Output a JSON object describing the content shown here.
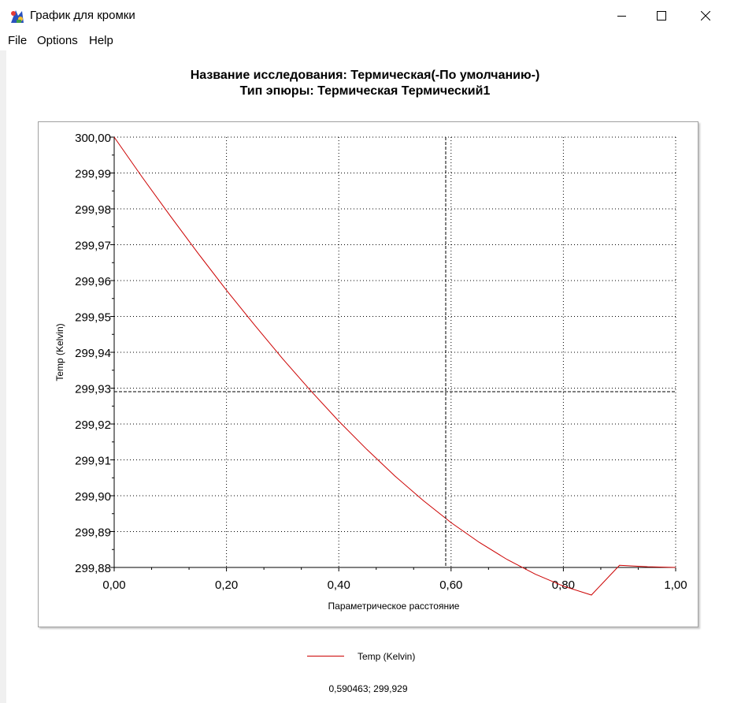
{
  "window": {
    "title": "График для кромки",
    "icon": "palette-chart-icon"
  },
  "menu": [
    {
      "label": "File"
    },
    {
      "label": "Options"
    },
    {
      "label": "Help"
    }
  ],
  "header": {
    "line1": "Название исследования: Термическая(-По умолчанию-)",
    "line2": "Тип эпюры: Термическая Термический1"
  },
  "chart_data": {
    "type": "line",
    "xlabel": "Параметрическое расстояние",
    "ylabel": "Temp (Kelvin)",
    "xlim": [
      0.0,
      1.0
    ],
    "ylim": [
      299.88,
      300.0
    ],
    "x_ticks": [
      "0,00",
      "0,20",
      "0,40",
      "0,60",
      "0,80",
      "1,00"
    ],
    "y_ticks": [
      "299,88",
      "299,89",
      "299,90",
      "299,91",
      "299,92",
      "299,93",
      "299,94",
      "299,95",
      "299,96",
      "299,97",
      "299,98",
      "299,99",
      "300,00"
    ],
    "grid": true,
    "legend": "bottom",
    "series": [
      {
        "name": "Temp (Kelvin)",
        "color": "#cc0000",
        "x": [
          0.0,
          0.05,
          0.1,
          0.15,
          0.2,
          0.25,
          0.3,
          0.35,
          0.4,
          0.45,
          0.5,
          0.55,
          0.6,
          0.65,
          0.7,
          0.75,
          0.8,
          0.85,
          0.9,
          0.95,
          1.0
        ],
        "y": [
          300.0,
          299.9888,
          299.978,
          299.9675,
          299.9573,
          299.9476,
          299.9382,
          299.9293,
          299.9208,
          299.9129,
          299.9055,
          299.8987,
          299.8925,
          299.887,
          299.8822,
          299.8781,
          299.8748,
          299.8723,
          299.8806,
          299.8802,
          299.88
        ]
      }
    ],
    "cursor": {
      "x": 0.590463,
      "y": 299.929
    }
  },
  "status": {
    "readout": "0,590463; 299,929"
  }
}
